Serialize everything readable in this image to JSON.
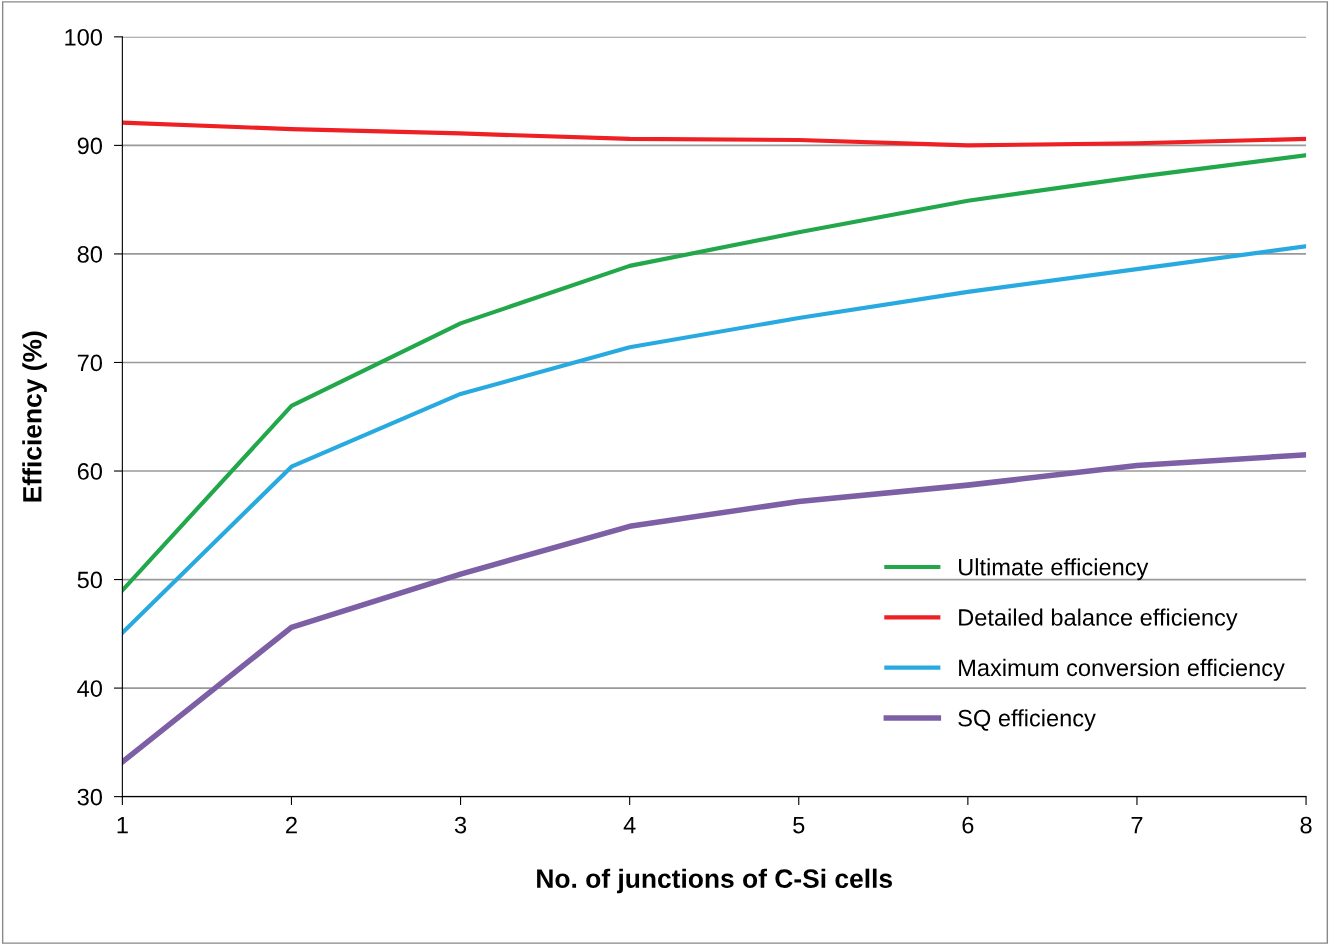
{
  "chart_data": {
    "type": "line",
    "xlabel": "No. of junctions of C-Si cells",
    "ylabel": "Efficiency (%)",
    "x": [
      1,
      2,
      3,
      4,
      5,
      6,
      7,
      8
    ],
    "series": [
      {
        "name": "Ultimate efficiency",
        "color": "#22a84a",
        "values": [
          49.0,
          66.0,
          73.6,
          78.9,
          82.0,
          84.9,
          87.1,
          89.1
        ]
      },
      {
        "name": "Detailed balance efficiency",
        "color": "#ee2024",
        "values": [
          92.1,
          91.5,
          91.1,
          90.6,
          90.5,
          90.0,
          90.2,
          90.6
        ]
      },
      {
        "name": "Maximum conversion efficiency",
        "color": "#28aae1",
        "values": [
          45.1,
          60.4,
          67.1,
          71.4,
          74.1,
          76.5,
          78.6,
          80.7
        ]
      },
      {
        "name": "SQ efficiency",
        "color": "#7d5fa5",
        "values": [
          33.2,
          45.6,
          50.5,
          54.9,
          57.2,
          58.7,
          60.5,
          61.5
        ]
      }
    ],
    "xlim": [
      1,
      8
    ],
    "xticks": [
      1,
      2,
      3,
      4,
      5,
      6,
      7,
      8
    ],
    "ylim": [
      30,
      100
    ],
    "yticks": [
      30,
      40,
      50,
      60,
      70,
      80,
      90,
      100
    ],
    "grid": "y",
    "legend": "right",
    "marker": "none",
    "line_style": "solid"
  }
}
